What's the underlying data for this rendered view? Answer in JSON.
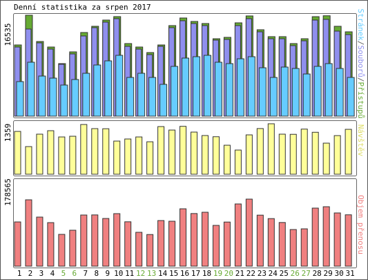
{
  "chart_data": [
    {
      "type": "bar",
      "title": "Denní statistika za srpen 2017",
      "ylim": [
        0,
        16535
      ],
      "yticks": [
        16535
      ],
      "legend_separator": "/",
      "series": [
        {
          "name": "Stránek",
          "color": "#66ccff",
          "values": [
            5663,
            8834,
            6569,
            6229,
            5096,
            6002,
            7022,
            8381,
            9060,
            9966,
            6342,
            7022,
            6342,
            5210,
            8154,
            9513,
            9740,
            9966,
            8834,
            8607,
            9400,
            9740,
            7928,
            6342,
            8041,
            7814,
            6908,
            8154,
            8607,
            7814,
            6342
          ]
        },
        {
          "name": "Souborů",
          "color": "#8f8fee",
          "values": [
            11325,
            14270,
            12005,
            10985,
            8494,
            10193,
            13137,
            14496,
            15402,
            15968,
            11438,
            10985,
            10079,
            11438,
            14496,
            15629,
            15176,
            14836,
            12458,
            12571,
            14836,
            15968,
            13817,
            12684,
            12684,
            11552,
            12344,
            15742,
            15855,
            13930,
            13364
          ]
        },
        {
          "name": "Přístupů",
          "color": "#66aa33",
          "values": [
            11665,
            16535,
            12231,
            11325,
            8607,
            10532,
            13703,
            14723,
            15742,
            16308,
            11891,
            11325,
            10419,
            11665,
            14836,
            16082,
            15515,
            15176,
            12684,
            12911,
            15289,
            16421,
            14156,
            13024,
            13024,
            11891,
            12684,
            16300,
            16450,
            14723,
            13817
          ]
        }
      ]
    },
    {
      "type": "bar",
      "ylim": [
        0,
        1359
      ],
      "yticks": [
        1359
      ],
      "series": [
        {
          "name": "Návštěv",
          "color": "#ffff99",
          "label_color": "#dddd66",
          "values": [
            1153,
            744,
            1079,
            1172,
            1004,
            1023,
            1339,
            1228,
            1225,
            893,
            949,
            1004,
            874,
            1283,
            1190,
            1290,
            1135,
            1042,
            1010,
            781,
            651,
            1060,
            1230,
            1359,
            1079,
            1075,
            1215,
            1130,
            837,
            1040,
            1209
          ]
        }
      ]
    },
    {
      "type": "bar",
      "ylim": [
        0,
        178565
      ],
      "yticks": [
        178565
      ],
      "categories": [
        "1",
        "2",
        "3",
        "4",
        "5",
        "6",
        "7",
        "8",
        "9",
        "10",
        "11",
        "12",
        "13",
        "14",
        "15",
        "16",
        "17",
        "18",
        "19",
        "20",
        "21",
        "22",
        "23",
        "24",
        "25",
        "26",
        "27",
        "28",
        "29",
        "30",
        "31"
      ],
      "category_colors": [
        "#000",
        "#000",
        "#000",
        "#000",
        "#66aa33",
        "#66aa33",
        "#000",
        "#000",
        "#000",
        "#000",
        "#000",
        "#66aa33",
        "#66aa33",
        "#000",
        "#000",
        "#000",
        "#000",
        "#000",
        "#66aa33",
        "#66aa33",
        "#000",
        "#000",
        "#000",
        "#000",
        "#000",
        "#66aa33",
        "#66aa33",
        "#000",
        "#000",
        "#000",
        "#000"
      ],
      "series": [
        {
          "name": "Objem přenosu",
          "color": "#f08080",
          "values": [
            117824,
            176736,
            130711,
            115983,
            84686,
            95732,
            136234,
            136500,
            127029,
            139916,
            118200,
            90209,
            84300,
            121506,
            119665,
            152803,
            140200,
            143598,
            108619,
            117500,
            165690,
            178565,
            135900,
            126700,
            116300,
            97573,
            99414,
            154644,
            158326,
            141757,
            136800
          ]
        }
      ]
    }
  ]
}
